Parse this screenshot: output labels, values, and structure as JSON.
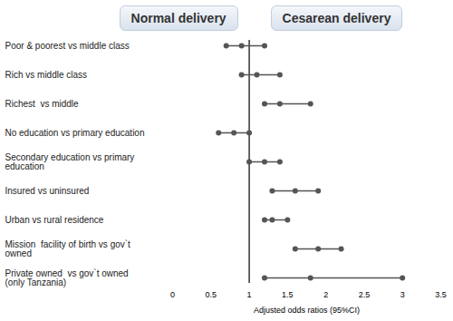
{
  "chart_data": {
    "type": "forest",
    "annotations": [
      "Normal delivery",
      "Cesarean delivery"
    ],
    "x_label": "Adjusted odds ratios (95%CI)",
    "categories": [
      "Poor & poorest vs middle class",
      "Rich vs middle class",
      "Richest  vs middle",
      "No education vs primary education",
      "Secondary education vs primary education",
      "Insured vs uninsured",
      "Urban vs rural residence",
      "Mission  facility of birth vs gov`t owned",
      "Private owned  vs gov`t owned (only Tanzania)"
    ],
    "values": [
      0.9,
      1.1,
      1.4,
      0.8,
      1.2,
      1.6,
      1.3,
      1.9,
      1.8
    ],
    "ci_lower": [
      0.7,
      0.9,
      1.2,
      0.6,
      1.0,
      1.3,
      1.2,
      1.6,
      1.2
    ],
    "ci_upper": [
      1.2,
      1.4,
      1.8,
      1.0,
      1.4,
      1.9,
      1.5,
      2.2,
      3.0
    ],
    "reference_line": 1,
    "xlim": [
      0,
      3.5
    ],
    "xticks": [
      0,
      0.5,
      1,
      1.5,
      2,
      2.5,
      3,
      3.5
    ],
    "color": "#555555",
    "grid": false
  }
}
